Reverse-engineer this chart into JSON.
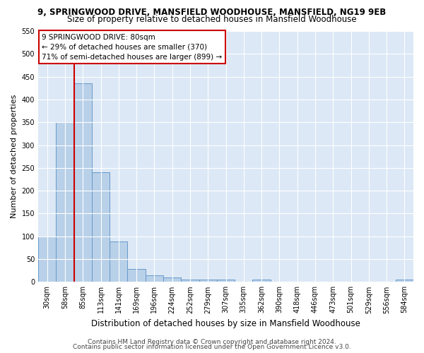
{
  "title1": "9, SPRINGWOOD DRIVE, MANSFIELD WOODHOUSE, MANSFIELD, NG19 9EB",
  "title2": "Size of property relative to detached houses in Mansfield Woodhouse",
  "xlabel": "Distribution of detached houses by size in Mansfield Woodhouse",
  "ylabel": "Number of detached properties",
  "bin_labels": [
    "30sqm",
    "58sqm",
    "85sqm",
    "113sqm",
    "141sqm",
    "169sqm",
    "196sqm",
    "224sqm",
    "252sqm",
    "279sqm",
    "307sqm",
    "335sqm",
    "362sqm",
    "390sqm",
    "418sqm",
    "446sqm",
    "473sqm",
    "501sqm",
    "529sqm",
    "556sqm",
    "584sqm"
  ],
  "bar_heights": [
    100,
    350,
    435,
    240,
    88,
    28,
    14,
    9,
    5,
    5,
    5,
    0,
    5,
    0,
    0,
    0,
    0,
    0,
    0,
    0,
    5
  ],
  "bar_color": "#b8d0e8",
  "bar_edge_color": "#6699cc",
  "red_line_bin": 2,
  "annotation_line1": "9 SPRINGWOOD DRIVE: 80sqm",
  "annotation_line2": "← 29% of detached houses are smaller (370)",
  "annotation_line3": "71% of semi-detached houses are larger (899) →",
  "annotation_box_color": "#ffffff",
  "annotation_border_color": "#cc0000",
  "ylim": [
    0,
    550
  ],
  "yticks": [
    0,
    50,
    100,
    150,
    200,
    250,
    300,
    350,
    400,
    450,
    500,
    550
  ],
  "footer1": "Contains HM Land Registry data © Crown copyright and database right 2024.",
  "footer2": "Contains public sector information licensed under the Open Government Licence v3.0.",
  "fig_bg_color": "#ffffff",
  "plot_bg_color": "#dce8f5",
  "grid_color": "#ffffff",
  "title1_fontsize": 8.5,
  "title2_fontsize": 8.5,
  "tick_fontsize": 7,
  "ylabel_fontsize": 8,
  "xlabel_fontsize": 8.5,
  "annotation_fontsize": 7.5,
  "footer_fontsize": 6.5
}
